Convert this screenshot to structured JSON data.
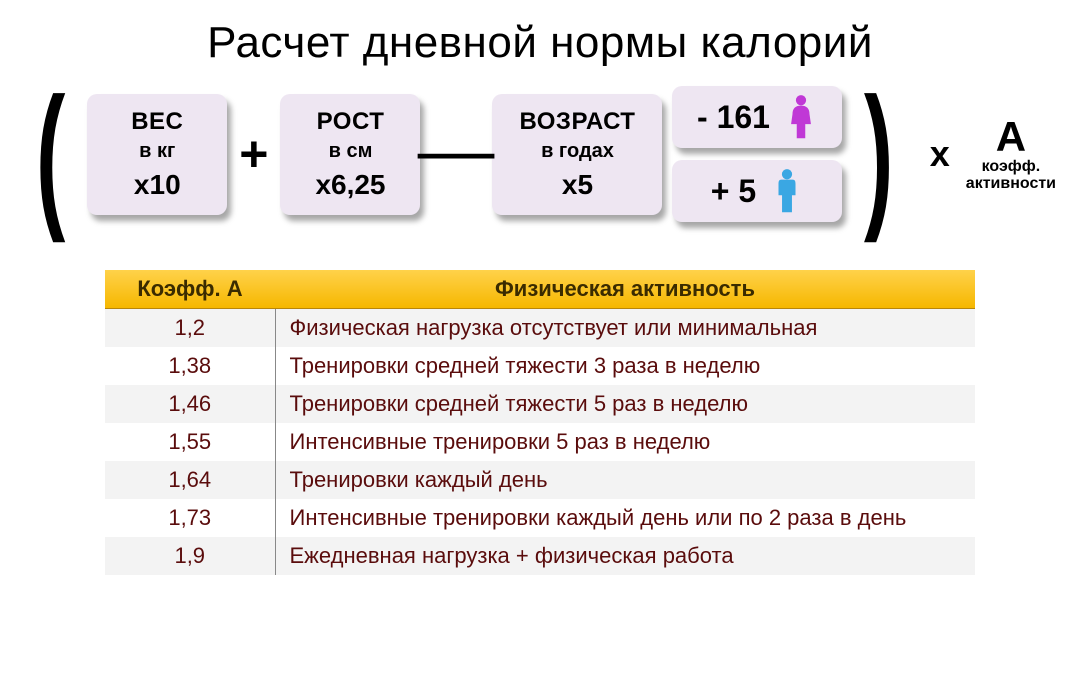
{
  "title": "Расчет дневной нормы калорий",
  "formula": {
    "paren_open": "(",
    "paren_close": ")",
    "plus": "+",
    "minus": "—",
    "times": "х",
    "weight": {
      "l1": "ВЕС",
      "l2": "в кг",
      "l3": "х10"
    },
    "height": {
      "l1": "РОСТ",
      "l2": "в см",
      "l3": "х6,25"
    },
    "age": {
      "l1": "ВОЗРАСТ",
      "l2": "в годах",
      "l3": "х5"
    },
    "female": {
      "text": "- 161",
      "icon_color": "#c038d6"
    },
    "male": {
      "text": "+ 5",
      "icon_color": "#3aa7e3"
    },
    "coef": {
      "A": "А",
      "sub1": "коэфф.",
      "sub2": "активности"
    },
    "box_bg": "#eee6f2"
  },
  "table": {
    "headers": {
      "coef": "Коэфф. А",
      "activity": "Физическая активность"
    },
    "header_bg_top": "#ffd24a",
    "header_bg_bottom": "#f6b700",
    "row_bg_odd": "#f3f3f3",
    "row_bg_even": "#ffffff",
    "text_color": "#5a0c0c",
    "rows": [
      {
        "coef": "1,2",
        "act": "Физическая нагрузка отсутствует или минимальная"
      },
      {
        "coef": "1,38",
        "act": "Тренировки средней тяжести 3 раза в неделю"
      },
      {
        "coef": "1,46",
        "act": "Тренировки средней тяжести 5 раз в неделю"
      },
      {
        "coef": "1,55",
        "act": "Интенсивные тренировки 5 раз в неделю"
      },
      {
        "coef": "1,64",
        "act": "Тренировки каждый день"
      },
      {
        "coef": "1,73",
        "act": "Интенсивные тренировки каждый день или по 2 раза в день"
      },
      {
        "coef": "1,9",
        "act": "Ежедневная нагрузка + физическая работа"
      }
    ]
  }
}
